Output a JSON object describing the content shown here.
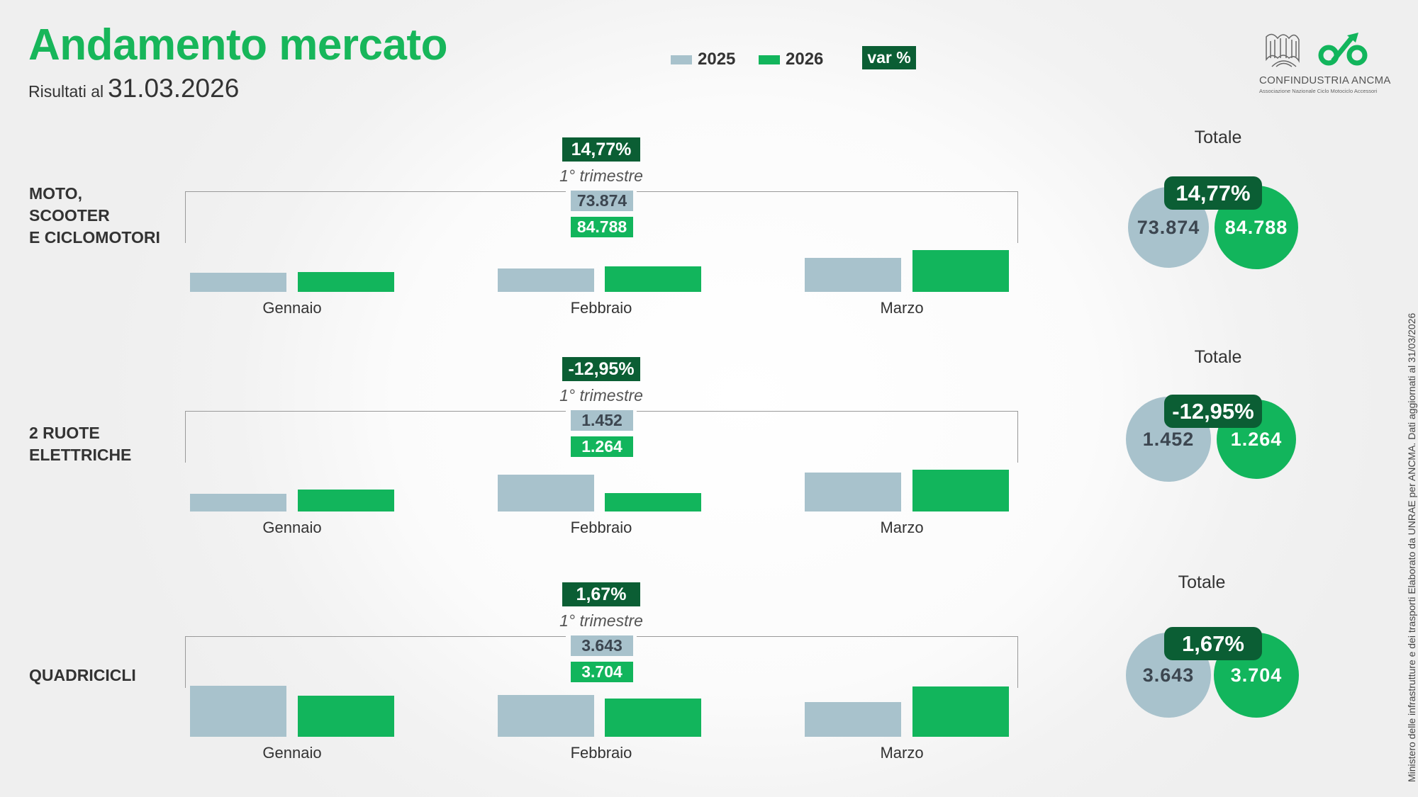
{
  "header": {
    "title": "Andamento mercato",
    "subtitle_label": "Risultati al",
    "subtitle_date": "31.03.2026"
  },
  "legend": {
    "items": [
      {
        "label": "2025",
        "color": "#a8c2cc"
      },
      {
        "label": "2026",
        "color": "#12b55c"
      }
    ],
    "var_label": "var %"
  },
  "logo": {
    "name": "CONFINDUSTRIA  ANCMA",
    "tagline": "Associazione Nazionale Ciclo Motociclo Accessori"
  },
  "source_note": "Ministero delle infrastrutture e dei trasporti Elaborato da UNRAE per ANCMA. Dati aggiornati al 31/03/2026",
  "colors": {
    "y2025": "#a8c2cc",
    "y2026": "#12b55c",
    "var": "#0b5e34",
    "title": "#17b65a"
  },
  "chart_data": [
    {
      "type": "bar",
      "category_label": "MOTO,\nSCOOTER\nE CICLOMOTORI",
      "period": "1° trimestre",
      "var": "14,77%",
      "total_2025": "73.874",
      "total_2026": "84.788",
      "totale_label": "Totale",
      "categories": [
        "Gennaio",
        "Febbraio",
        "Marzo"
      ],
      "series": [
        {
          "name": "2025",
          "values": [
            18250,
            22600,
            33020
          ]
        },
        {
          "name": "2026",
          "values": [
            19430,
            24730,
            40630
          ]
        }
      ]
    },
    {
      "type": "bar",
      "category_label": "2 RUOTE\nELETTRICHE",
      "period": "1° trimestre",
      "var": "-12,95%",
      "total_2025": "1.452",
      "total_2026": "1.264",
      "totale_label": "Totale",
      "categories": [
        "Gennaio",
        "Febbraio",
        "Marzo"
      ],
      "series": [
        {
          "name": "2025",
          "values": [
            279,
            572,
            600
          ]
        },
        {
          "name": "2026",
          "values": [
            337,
            281,
            646
          ]
        }
      ]
    },
    {
      "type": "bar",
      "category_label": "QUADRICICLI",
      "period": "1° trimestre",
      "var": "1,67%",
      "total_2025": "3.643",
      "total_2026": "3.704",
      "totale_label": "Totale",
      "categories": [
        "Gennaio",
        "Febbraio",
        "Marzo"
      ],
      "series": [
        {
          "name": "2025",
          "values": [
            1457,
            1197,
            989
          ]
        },
        {
          "name": "2026",
          "values": [
            1174,
            1096,
            1434
          ]
        }
      ]
    }
  ]
}
